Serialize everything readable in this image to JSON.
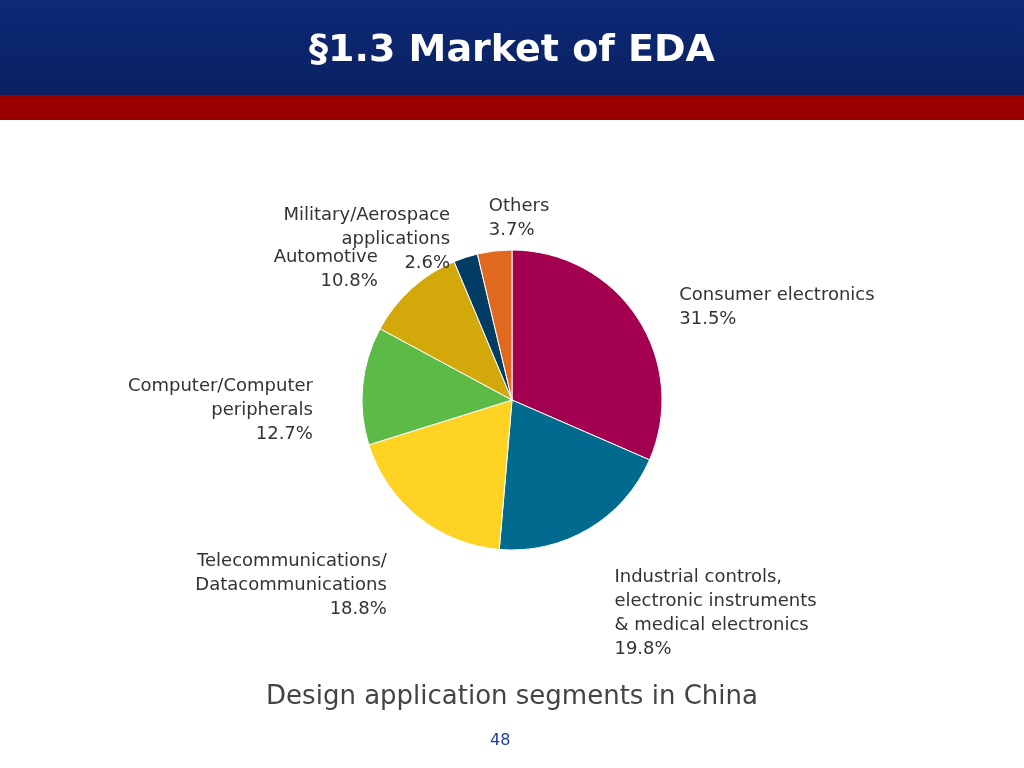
{
  "chart_data": {
    "type": "pie",
    "title": "§1.3 Market of EDA",
    "categories": [
      "Consumer electronics",
      "Industrial controls, electronic instruments & medical electronics",
      "Telecommunications/ Datacommunications",
      "Computer/Computer peripherals",
      "Automotive",
      "Military/Aerospace applications",
      "Others"
    ],
    "values": [
      31.5,
      19.8,
      18.8,
      12.7,
      10.8,
      2.6,
      3.7
    ],
    "value_labels": [
      "31.5%",
      "19.8%",
      "18.8%",
      "12.7%",
      "10.8%",
      "2.6%",
      "3.7%"
    ],
    "colors": [
      "#a3004f",
      "#006b8f",
      "#ffd324",
      "#5cba47",
      "#d3a80b",
      "#003c63",
      "#e0691f"
    ],
    "annotations": [
      "Design application segments in China",
      "48"
    ]
  }
}
